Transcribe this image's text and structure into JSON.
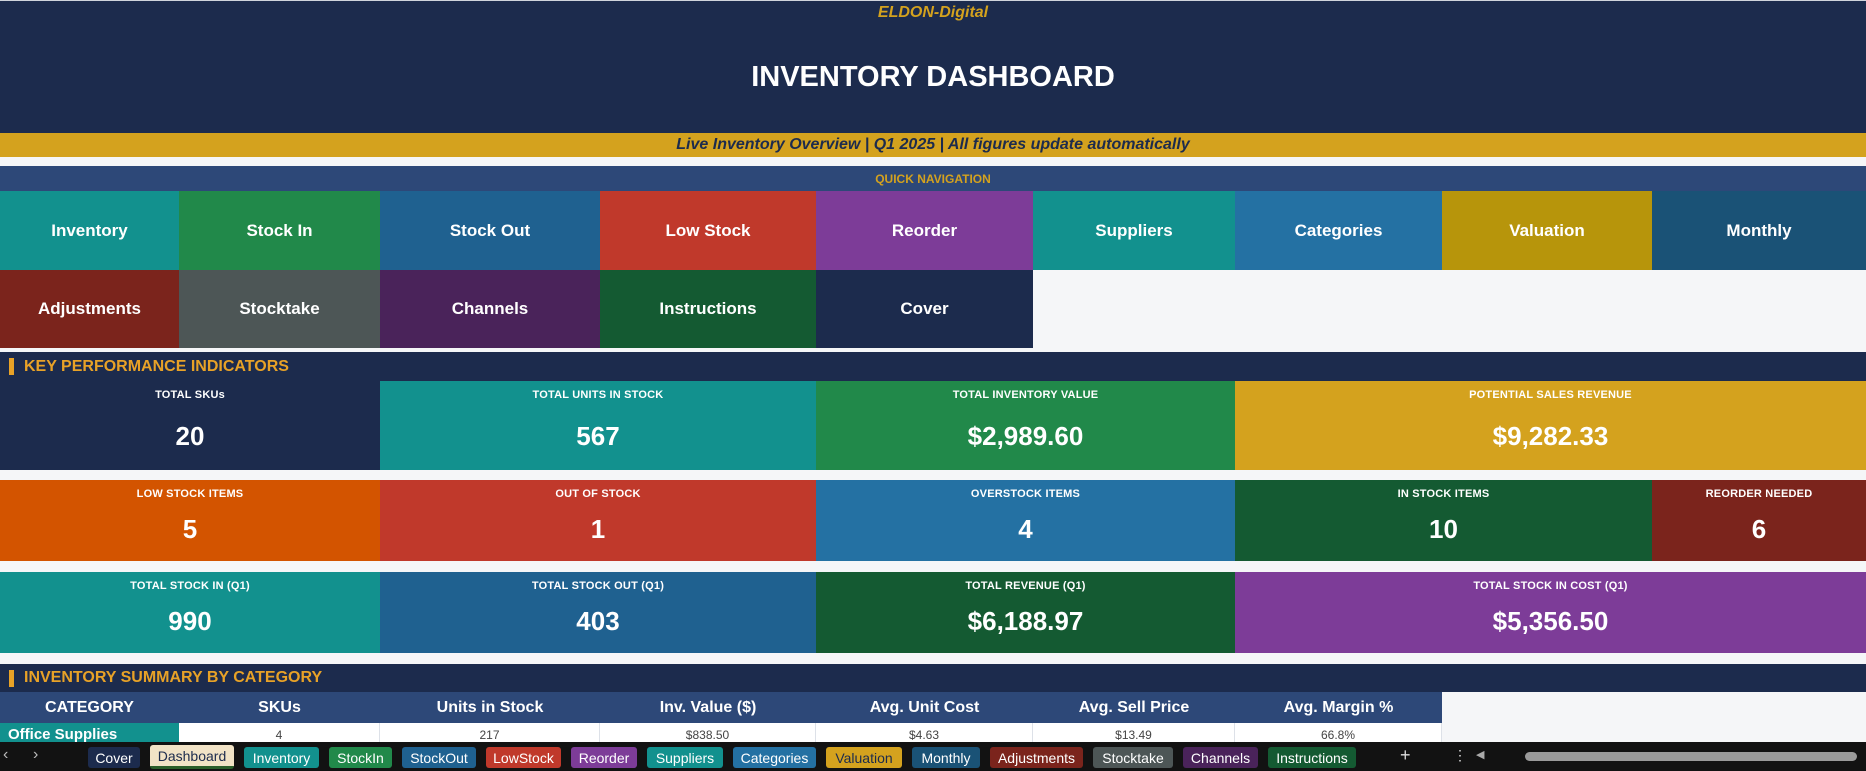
{
  "header": {
    "brand": "ELDON-Digital",
    "title": "INVENTORY DASHBOARD",
    "subtitle": "Live Inventory Overview  |  Q1 2025  |  All figures update automatically"
  },
  "quick_nav": {
    "label": "QUICK NAVIGATION",
    "buttons": [
      {
        "label": "Inventory",
        "color": "#12918e"
      },
      {
        "label": "Stock In",
        "color": "#21894a"
      },
      {
        "label": "Stock Out",
        "color": "#1f6190"
      },
      {
        "label": "Low Stock",
        "color": "#c0392b"
      },
      {
        "label": "Reorder",
        "color": "#7d3c98"
      },
      {
        "label": "Suppliers",
        "color": "#12918e"
      },
      {
        "label": "Categories",
        "color": "#2471a3"
      },
      {
        "label": "Valuation",
        "color": "#b7950b"
      },
      {
        "label": "Monthly",
        "color": "#1a5276"
      },
      {
        "label": "Adjustments",
        "color": "#7b241c"
      },
      {
        "label": "Stocktake",
        "color": "#4d5656"
      },
      {
        "label": "Channels",
        "color": "#4a235a"
      },
      {
        "label": "Instructions",
        "color": "#145a32"
      },
      {
        "label": "Cover",
        "color": "#1c2b4d"
      }
    ]
  },
  "kpi_section": {
    "title": "KEY PERFORMANCE INDICATORS",
    "row1": [
      {
        "label": "TOTAL SKUs",
        "value": "20",
        "color": "#1c2b4d"
      },
      {
        "label": "TOTAL UNITS IN STOCK",
        "value": "567",
        "color": "#12918e"
      },
      {
        "label": "TOTAL INVENTORY VALUE",
        "value": "$2,989.60",
        "color": "#21894a"
      },
      {
        "label": "POTENTIAL SALES REVENUE",
        "value": "$9,282.33",
        "color": "#d4a21e"
      }
    ],
    "row2": [
      {
        "label": "LOW STOCK ITEMS",
        "value": "5",
        "color": "#d35400"
      },
      {
        "label": "OUT OF STOCK",
        "value": "1",
        "color": "#c0392b"
      },
      {
        "label": "OVERSTOCK ITEMS",
        "value": "4",
        "color": "#2471a3"
      },
      {
        "label": "IN STOCK ITEMS",
        "value": "10",
        "color": "#145a32"
      },
      {
        "label": "REORDER NEEDED",
        "value": "6",
        "color": "#7b241c"
      }
    ],
    "row3": [
      {
        "label": "TOTAL STOCK IN (Q1)",
        "value": "990",
        "color": "#12918e"
      },
      {
        "label": "TOTAL STOCK OUT (Q1)",
        "value": "403",
        "color": "#1f6190"
      },
      {
        "label": "TOTAL REVENUE (Q1)",
        "value": "$6,188.97",
        "color": "#145a32"
      },
      {
        "label": "TOTAL STOCK IN COST (Q1)",
        "value": "$5,356.50",
        "color": "#7d3c98"
      }
    ]
  },
  "summary": {
    "title": "INVENTORY SUMMARY BY CATEGORY",
    "columns": [
      "CATEGORY",
      "SKUs",
      "Units in Stock",
      "Inv. Value ($)",
      "Avg. Unit Cost",
      "Avg. Sell Price",
      "Avg. Margin %"
    ],
    "rows": [
      {
        "category": "Office Supplies",
        "skus": "4",
        "units": "217",
        "value": "$838.50",
        "avg_cost": "$4.63",
        "avg_price": "$13.49",
        "margin": "66.8%"
      }
    ]
  },
  "sheet_tabs": {
    "active": "Dashboard",
    "tabs": [
      {
        "label": "Cover",
        "color": "#1c2b4d"
      },
      {
        "label": "Dashboard",
        "color": "#f1e3c6"
      },
      {
        "label": "Inventory",
        "color": "#12918e"
      },
      {
        "label": "StockIn",
        "color": "#21894a"
      },
      {
        "label": "StockOut",
        "color": "#1f6190"
      },
      {
        "label": "LowStock",
        "color": "#c0392b"
      },
      {
        "label": "Reorder",
        "color": "#7d3c98"
      },
      {
        "label": "Suppliers",
        "color": "#12918e"
      },
      {
        "label": "Categories",
        "color": "#2471a3"
      },
      {
        "label": "Valuation",
        "color": "#d4a21e"
      },
      {
        "label": "Monthly",
        "color": "#1a5276"
      },
      {
        "label": "Adjustments",
        "color": "#7b241c"
      },
      {
        "label": "Stocktake",
        "color": "#4d5656"
      },
      {
        "label": "Channels",
        "color": "#4a235a"
      },
      {
        "label": "Instructions",
        "color": "#145a32"
      }
    ],
    "add_icon": "plus-icon",
    "more_icon": "more-vertical-icon"
  }
}
